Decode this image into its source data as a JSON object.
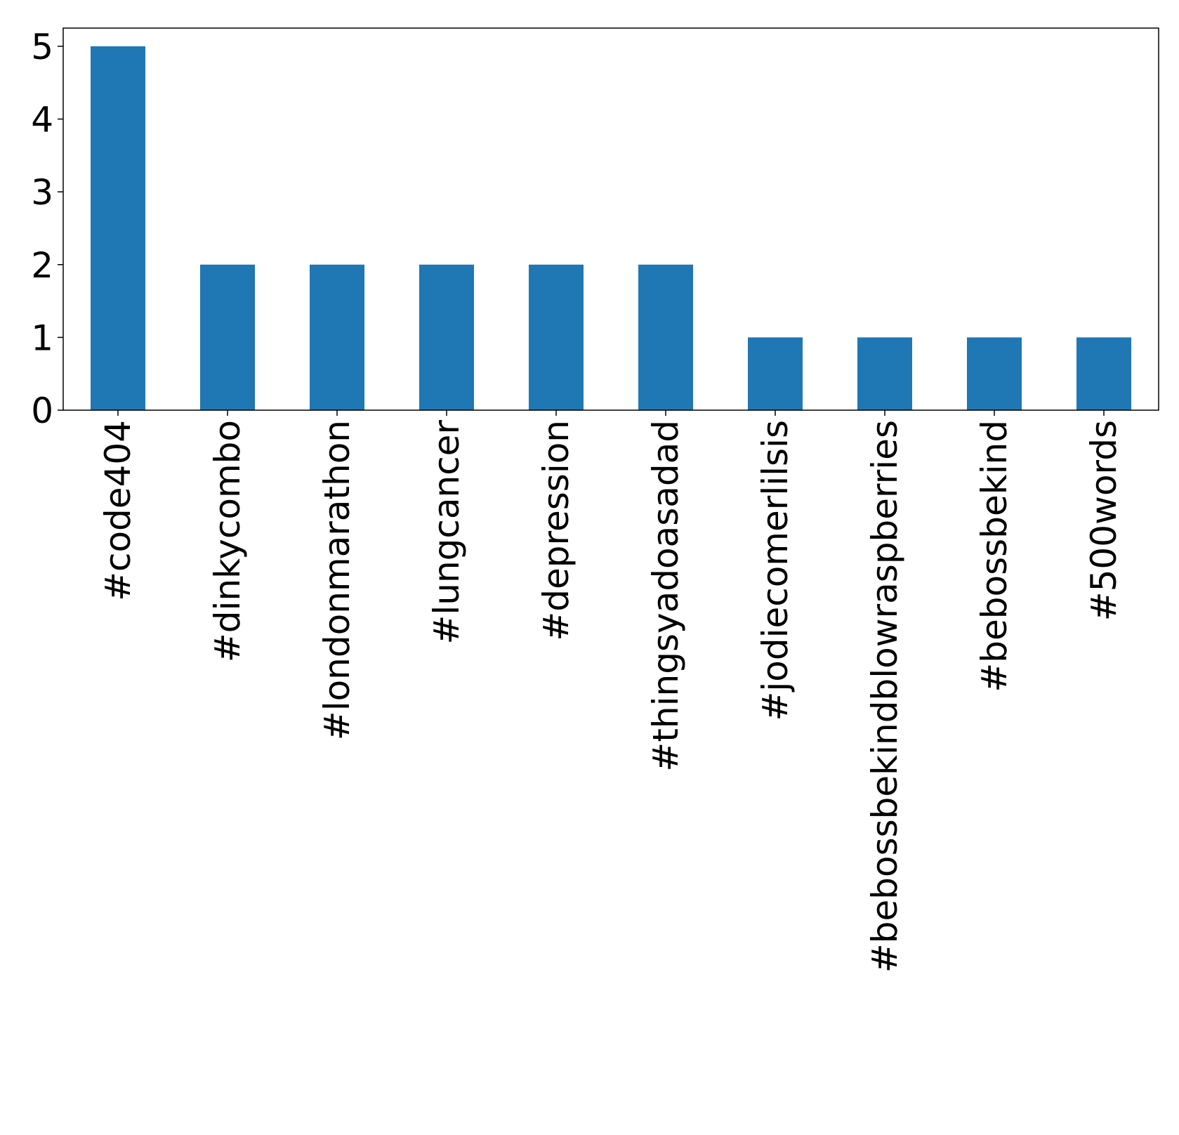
{
  "chart_data": {
    "type": "bar",
    "categories": [
      "#code404",
      "#dinkycombo",
      "#londonmarathon",
      "#lungcancer",
      "#depression",
      "#thingsyadoasadad",
      "#jodiecomerlilsis",
      "#bebossbekindblowraspberries",
      "#bebossbekind",
      "#500words"
    ],
    "values": [
      5,
      2,
      2,
      2,
      2,
      2,
      1,
      1,
      1,
      1
    ],
    "yticks": [
      "0",
      "1",
      "2",
      "3",
      "4",
      "5"
    ],
    "ylim": [
      0,
      5.25
    ],
    "grid": false,
    "legend": false,
    "colors": {
      "bar": "#1f77b4",
      "axis": "#000000",
      "background": "#ffffff"
    }
  }
}
